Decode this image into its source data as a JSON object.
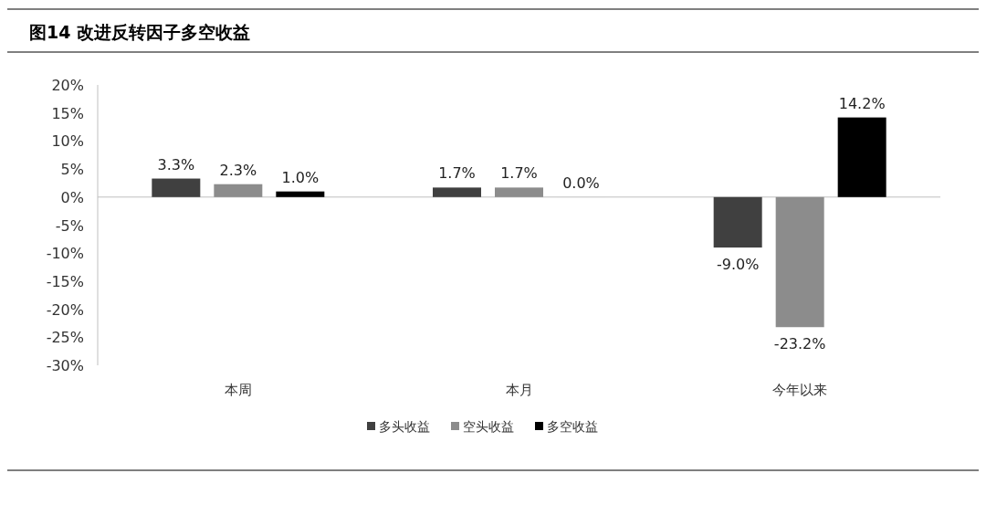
{
  "chart_data": {
    "type": "bar",
    "title": "图14 改进反转因子多空收益",
    "categories": [
      "本周",
      "本月",
      "今年以来"
    ],
    "series": [
      {
        "name": "多头收益",
        "color": "#404040",
        "values": [
          3.3,
          1.7,
          -9.0
        ],
        "value_labels": [
          "3.3%",
          "1.7%",
          "-9.0%"
        ]
      },
      {
        "name": "空头收益",
        "color": "#8c8c8c",
        "values": [
          2.3,
          1.7,
          -23.2
        ],
        "value_labels": [
          "2.3%",
          "1.7%",
          "-23.2%"
        ]
      },
      {
        "name": "多空收益",
        "color": "#000000",
        "values": [
          1.0,
          0.0,
          14.2
        ],
        "value_labels": [
          "1.0%",
          "0.0%",
          "14.2%"
        ]
      }
    ],
    "ylim": [
      -30,
      20
    ],
    "yticks": [
      {
        "value": 20,
        "label": "20%"
      },
      {
        "value": 15,
        "label": "15%"
      },
      {
        "value": 10,
        "label": "10%"
      },
      {
        "value": 5,
        "label": "5%"
      },
      {
        "value": 0,
        "label": "0%"
      },
      {
        "value": -5,
        "label": "-5%"
      },
      {
        "value": -10,
        "label": "-10%"
      },
      {
        "value": -15,
        "label": "-15%"
      },
      {
        "value": -20,
        "label": "-20%"
      },
      {
        "value": -25,
        "label": "-25%"
      },
      {
        "value": -30,
        "label": "-30%"
      }
    ],
    "legend": "bottom"
  }
}
